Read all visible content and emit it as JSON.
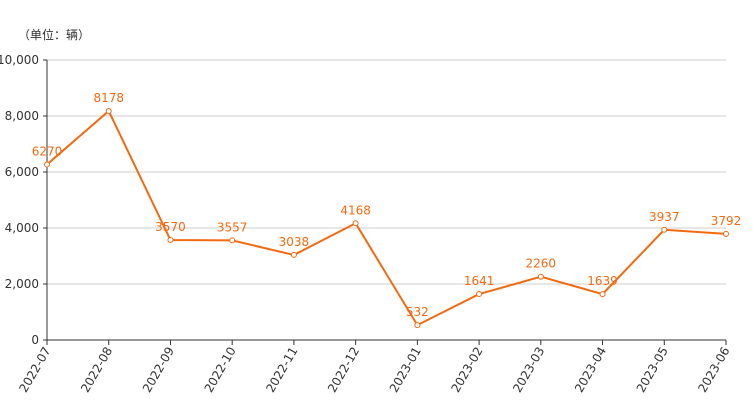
{
  "chart_data": {
    "type": "line",
    "y_axis_label": "（单位：辆）",
    "categories": [
      "2022-07",
      "2022-08",
      "2022-09",
      "2022-10",
      "2022-11",
      "2022-12",
      "2023-01",
      "2023-02",
      "2023-03",
      "2023-04",
      "2023-05",
      "2023-06"
    ],
    "values": [
      6270,
      8178,
      3570,
      3557,
      3038,
      4168,
      532,
      1641,
      2260,
      1639,
      3937,
      3792
    ],
    "color": "#f26a10",
    "ylim": [
      0,
      10000
    ],
    "yticks": [
      0,
      {
        "value": 2000,
        "label": "2,000"
      },
      {
        "value": 4000,
        "label": "4,000"
      },
      {
        "value": 6000,
        "label": "6,000"
      },
      {
        "value": 8000,
        "label": "8,000"
      },
      {
        "value": 10000,
        "label": "10,000"
      }
    ],
    "grid": true
  }
}
